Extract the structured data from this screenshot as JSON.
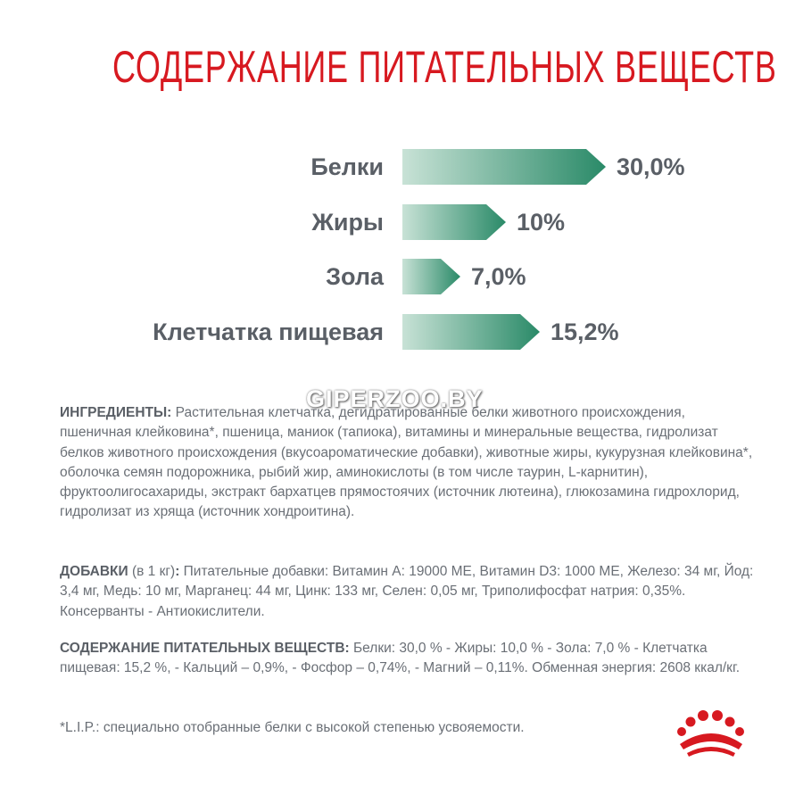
{
  "title": "СОДЕРЖАНИЕ ПИТАТЕЛЬНЫХ ВЕЩЕСТВ",
  "watermark": "GIPERZOO.BY",
  "colors": {
    "title": "#d71920",
    "bar_start": "#c8e2d6",
    "bar_end": "#2a8a68",
    "logo": "#d71920"
  },
  "chart_data": {
    "type": "bar",
    "categories": [
      "Белки",
      "Жиры",
      "Зола",
      "Клетчатка пищевая"
    ],
    "values": [
      30.0,
      10,
      7.0,
      15.2
    ],
    "value_labels": [
      "30,0%",
      "10%",
      "7,0%",
      "15,2%"
    ]
  },
  "ingredients": {
    "heading": "ИНГРЕДИЕНТЫ:",
    "text": " Растительная клетчатка, дегидратированные белки животного происхождения, пшеничная клейковина*, пшеница, маниок (тапиока), витамины и минеральные вещества, гидролизат белков животного происхождения (вкусоароматические добавки), животные жиры, кукурузная клейковина*, оболочка семян подорожника, рыбий жир, аминокислоты (в том числе таурин, L-карнитин), фруктоолигосахариды, экстракт бархатцев прямостоячих (источник лютеина), глюкозамина гидрохлорид, гидролизат из хряща (источник хондроитина)."
  },
  "additives": {
    "heading": "ДОБАВКИ",
    "subheading": " (в 1 кг)",
    "colon": ":",
    "text": " Питательные добавки: Витамин А: 19000 МЕ, Витамин D3: 1000 МЕ, Железо: 34 мг, Йод: 3,4 мг, Медь: 10 мг, Марганец: 44 мг, Цинк: 133 мг, Селен: 0,05 мг, Триполифосфат натрия: 0,35%. Консерванты - Антиокислители."
  },
  "nutrients": {
    "heading": "СОДЕРЖАНИЕ ПИТАТЕЛЬНЫХ ВЕЩЕСТВ:",
    "text": " Белки: 30,0 % - Жиры: 10,0 % - Зола: 7,0 % - Клетчатка пищевая: 15,2 %, - Кальций – 0,9%, - Фосфор – 0,74%, - Магний – 0,11%. Обменная энергия: 2608 ккал/кг."
  },
  "footnote": "*L.I.P.: специально отобранные белки с высокой степенью усвояемости.",
  "logo_icon": "royal-crown-icon"
}
